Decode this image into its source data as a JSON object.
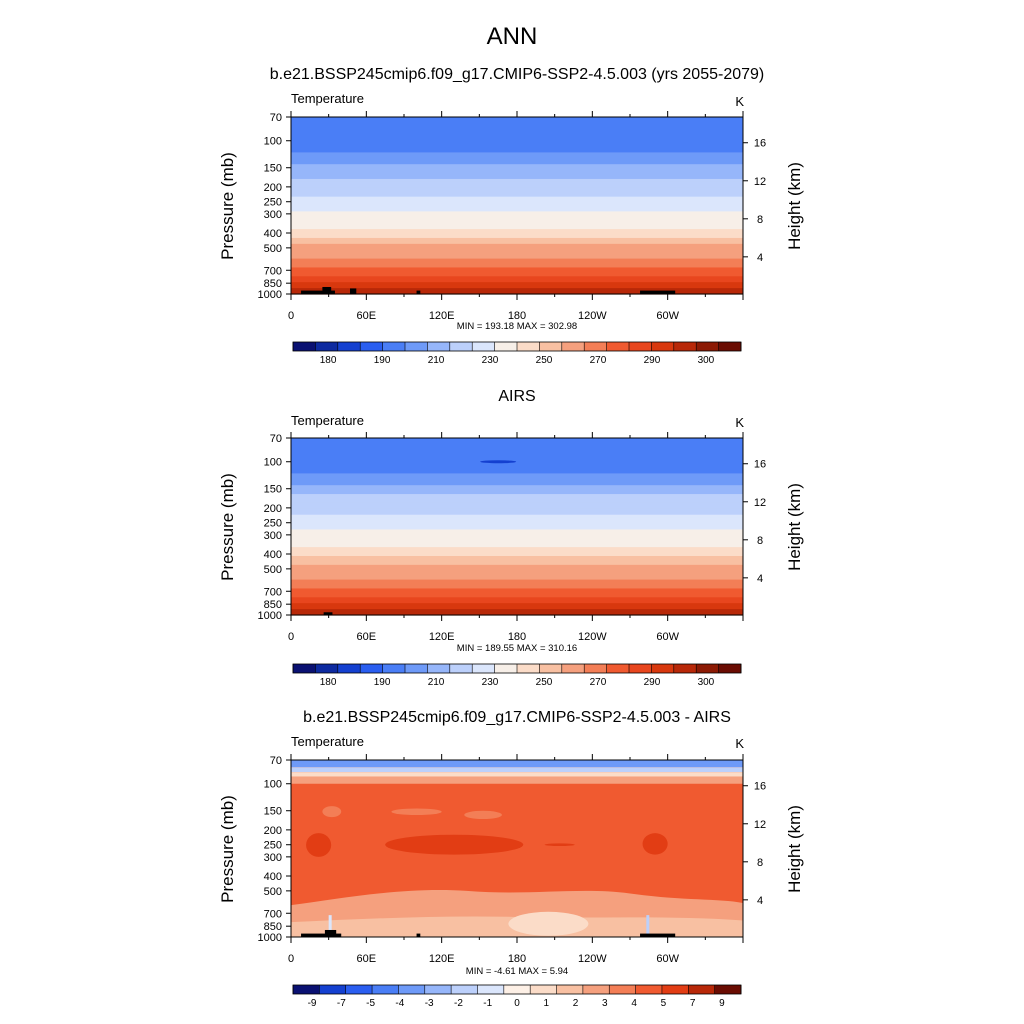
{
  "figure": {
    "title": "ANN"
  },
  "colors": {
    "temperature_levels": [
      "#0a1172",
      "#0d2aa0",
      "#1440d0",
      "#2a5ef0",
      "#4a7ef6",
      "#6e9af8",
      "#96b6fa",
      "#bcd0fb",
      "#dbe6fc",
      "#f7efe8",
      "#fbdcc8",
      "#f8c0a2",
      "#f5a07e",
      "#f37e56",
      "#f05a30",
      "#e8461e",
      "#d8380e",
      "#b82808",
      "#8c1a04",
      "#6a0c02"
    ],
    "diff_levels": [
      "#0a1172",
      "#1440d0",
      "#2a5ef0",
      "#4a7ef6",
      "#6e9af8",
      "#96b6fa",
      "#bcd0fb",
      "#dbe6fc",
      "#fdf0e6",
      "#fbdcc8",
      "#f8c0a2",
      "#f5a07e",
      "#f37e56",
      "#f05a30",
      "#e23d14",
      "#b82808",
      "#6a0c02"
    ],
    "land_mask": "#000000"
  },
  "chart_data": [
    {
      "type": "heatmap",
      "panel_title": "b.e21.BSSP245cmip6.f09_g17.CMIP6-SSP2-4.5.003 (yrs 2055-2079)",
      "left_label": "Temperature",
      "units": "K",
      "ylabel": "Pressure (mb)",
      "ylabel_right": "Height (km)",
      "y_ticks": [
        "70",
        "100",
        "150",
        "200",
        "250",
        "300",
        "400",
        "500",
        "700",
        "850",
        "1000"
      ],
      "y_tick_values": [
        70,
        100,
        150,
        200,
        250,
        300,
        400,
        500,
        700,
        850,
        1000
      ],
      "y_right_ticks": [
        "16",
        "12",
        "8",
        "4"
      ],
      "y_right_values": [
        16,
        12,
        8,
        4
      ],
      "x_ticks": [
        "0",
        "60E",
        "120E",
        "180",
        "120W",
        "60W"
      ],
      "x_tick_values": [
        0,
        60,
        120,
        180,
        240,
        300
      ],
      "xlim": [
        0,
        360
      ],
      "ylim": [
        70,
        1000
      ],
      "stats": "MIN = 193.18  MAX = 302.98",
      "colorbar_labels": [
        "180",
        "190",
        "210",
        "230",
        "250",
        "270",
        "290",
        "300"
      ],
      "min": 193.18,
      "max": 302.98
    },
    {
      "type": "heatmap",
      "panel_title": "AIRS",
      "left_label": "Temperature",
      "units": "K",
      "ylabel": "Pressure (mb)",
      "ylabel_right": "Height (km)",
      "y_ticks": [
        "70",
        "100",
        "150",
        "200",
        "250",
        "300",
        "400",
        "500",
        "700",
        "850",
        "1000"
      ],
      "y_tick_values": [
        70,
        100,
        150,
        200,
        250,
        300,
        400,
        500,
        700,
        850,
        1000
      ],
      "y_right_ticks": [
        "16",
        "12",
        "8",
        "4"
      ],
      "y_right_values": [
        16,
        12,
        8,
        4
      ],
      "x_ticks": [
        "0",
        "60E",
        "120E",
        "180",
        "120W",
        "60W"
      ],
      "x_tick_values": [
        0,
        60,
        120,
        180,
        240,
        300
      ],
      "xlim": [
        0,
        360
      ],
      "ylim": [
        70,
        1000
      ],
      "stats": "MIN = 189.55  MAX = 310.16",
      "colorbar_labels": [
        "180",
        "190",
        "210",
        "230",
        "250",
        "270",
        "290",
        "300"
      ],
      "min": 189.55,
      "max": 310.16
    },
    {
      "type": "heatmap",
      "panel_title": "b.e21.BSSP245cmip6.f09_g17.CMIP6-SSP2-4.5.003 - AIRS",
      "left_label": "Temperature",
      "units": "K",
      "ylabel": "Pressure (mb)",
      "ylabel_right": "Height (km)",
      "y_ticks": [
        "70",
        "100",
        "150",
        "200",
        "250",
        "300",
        "400",
        "500",
        "700",
        "850",
        "1000"
      ],
      "y_tick_values": [
        70,
        100,
        150,
        200,
        250,
        300,
        400,
        500,
        700,
        850,
        1000
      ],
      "y_right_ticks": [
        "16",
        "12",
        "8",
        "4"
      ],
      "y_right_values": [
        16,
        12,
        8,
        4
      ],
      "x_ticks": [
        "0",
        "60E",
        "120E",
        "180",
        "120W",
        "60W"
      ],
      "x_tick_values": [
        0,
        60,
        120,
        180,
        240,
        300
      ],
      "xlim": [
        0,
        360
      ],
      "ylim": [
        70,
        1000
      ],
      "stats": "MIN =  -4.61  MAX =   5.94",
      "colorbar_labels": [
        "-9",
        "-7",
        "-5",
        "-4",
        "-3",
        "-2",
        "-1",
        "0",
        "1",
        "2",
        "3",
        "4",
        "5",
        "7",
        "9"
      ],
      "min": -4.61,
      "max": 5.94
    }
  ]
}
